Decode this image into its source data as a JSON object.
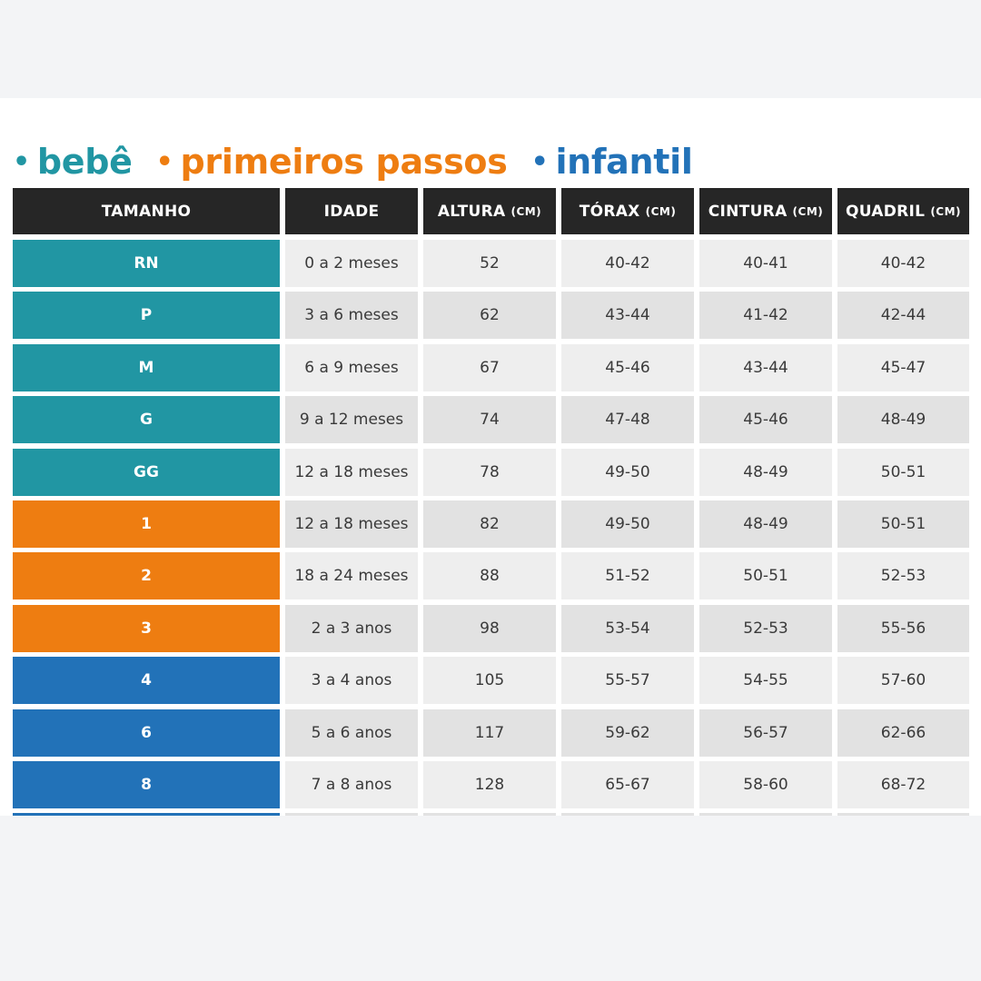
{
  "legend": [
    {
      "label": "bebê",
      "color": "#2196a3"
    },
    {
      "label": "primeiros passos",
      "color": "#ee7d11"
    },
    {
      "label": "infantil",
      "color": "#2272b8"
    }
  ],
  "legend_bullet": "•",
  "headers": [
    {
      "label": "TAMANHO",
      "unit": ""
    },
    {
      "label": "IDADE",
      "unit": ""
    },
    {
      "label": "ALTURA",
      "unit": "(CM)"
    },
    {
      "label": "TÓRAX",
      "unit": "(CM)"
    },
    {
      "label": "CINTURA",
      "unit": "(CM)"
    },
    {
      "label": "QUADRIL",
      "unit": "(CM)"
    }
  ],
  "group_colors": {
    "bebe": "#2196a3",
    "primeiros_passos": "#ee7d11",
    "infantil": "#2272b8"
  },
  "rows": [
    {
      "group": "bebe",
      "cells": [
        "RN",
        "0 a 2 meses",
        "52",
        "40-42",
        "40-41",
        "40-42"
      ]
    },
    {
      "group": "bebe",
      "cells": [
        "P",
        "3 a 6 meses",
        "62",
        "43-44",
        "41-42",
        "42-44"
      ]
    },
    {
      "group": "bebe",
      "cells": [
        "M",
        "6 a 9 meses",
        "67",
        "45-46",
        "43-44",
        "45-47"
      ]
    },
    {
      "group": "bebe",
      "cells": [
        "G",
        "9 a 12 meses",
        "74",
        "47-48",
        "45-46",
        "48-49"
      ]
    },
    {
      "group": "bebe",
      "cells": [
        "GG",
        "12 a 18 meses",
        "78",
        "49-50",
        "48-49",
        "50-51"
      ]
    },
    {
      "group": "primeiros_passos",
      "cells": [
        "1",
        "12 a 18 meses",
        "82",
        "49-50",
        "48-49",
        "50-51"
      ]
    },
    {
      "group": "primeiros_passos",
      "cells": [
        "2",
        "18 a 24 meses",
        "88",
        "51-52",
        "50-51",
        "52-53"
      ]
    },
    {
      "group": "primeiros_passos",
      "cells": [
        "3",
        "2 a 3 anos",
        "98",
        "53-54",
        "52-53",
        "55-56"
      ]
    },
    {
      "group": "infantil",
      "cells": [
        "4",
        "3 a 4 anos",
        "105",
        "55-57",
        "54-55",
        "57-60"
      ]
    },
    {
      "group": "infantil",
      "cells": [
        "6",
        "5 a 6 anos",
        "117",
        "59-62",
        "56-57",
        "62-66"
      ]
    },
    {
      "group": "infantil",
      "cells": [
        "8",
        "7 a 8 anos",
        "128",
        "65-67",
        "58-60",
        "68-72"
      ]
    },
    {
      "group": "infantil",
      "cells": [
        "",
        "",
        "",
        "",
        "",
        ""
      ]
    }
  ]
}
